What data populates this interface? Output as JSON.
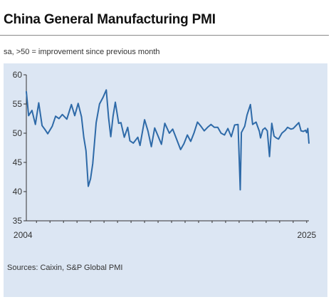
{
  "title": "China General Manufacturing PMI",
  "subtitle": "sa, >50 = improvement since previous month",
  "source": "Sources: Caixin, S&P Global PMI",
  "colors": {
    "line": "#2e6aa8",
    "panel": "#dce6f3",
    "grid": "#ffffff",
    "axis": "#333333"
  },
  "chart_data": {
    "type": "line",
    "title": "China General Manufacturing PMI",
    "subtitle": "sa, >50 = improvement since previous month",
    "xlabel": "",
    "ylabel": "",
    "x_tick_labels": [
      "2004",
      "2025"
    ],
    "x_range": [
      "2004-04",
      "2025-03"
    ],
    "ylim": [
      35,
      60
    ],
    "y_ticks": [
      35,
      40,
      45,
      50,
      55,
      60
    ],
    "grid": false,
    "legend": "none",
    "series": [
      {
        "points": [
          [
            "2004-04",
            57.1
          ],
          [
            "2004-06",
            53.0
          ],
          [
            "2004-09",
            53.9
          ],
          [
            "2004-12",
            51.5
          ],
          [
            "2005-03",
            55.2
          ],
          [
            "2005-06",
            51.3
          ],
          [
            "2005-09",
            50.5
          ],
          [
            "2005-11",
            49.9
          ],
          [
            "2006-03",
            51.2
          ],
          [
            "2006-06",
            52.9
          ],
          [
            "2006-09",
            52.5
          ],
          [
            "2006-12",
            53.2
          ],
          [
            "2007-04",
            52.4
          ],
          [
            "2007-08",
            54.9
          ],
          [
            "2007-11",
            53.0
          ],
          [
            "2008-02",
            55.1
          ],
          [
            "2008-05",
            52.8
          ],
          [
            "2008-07",
            49.3
          ],
          [
            "2008-09",
            47.0
          ],
          [
            "2008-11",
            40.9
          ],
          [
            "2009-01",
            42.2
          ],
          [
            "2009-03",
            44.8
          ],
          [
            "2009-06",
            51.8
          ],
          [
            "2009-09",
            55.0
          ],
          [
            "2009-12",
            56.1
          ],
          [
            "2010-03",
            57.4
          ],
          [
            "2010-05",
            52.7
          ],
          [
            "2010-07",
            49.4
          ],
          [
            "2010-09",
            52.9
          ],
          [
            "2010-11",
            55.3
          ],
          [
            "2011-02",
            51.7
          ],
          [
            "2011-04",
            51.8
          ],
          [
            "2011-07",
            49.3
          ],
          [
            "2011-10",
            51.0
          ],
          [
            "2011-12",
            48.7
          ],
          [
            "2012-03",
            48.3
          ],
          [
            "2012-07",
            49.3
          ],
          [
            "2012-09",
            47.9
          ],
          [
            "2013-01",
            52.3
          ],
          [
            "2013-04",
            50.4
          ],
          [
            "2013-07",
            47.7
          ],
          [
            "2013-10",
            50.9
          ],
          [
            "2014-01",
            49.5
          ],
          [
            "2014-04",
            48.1
          ],
          [
            "2014-07",
            51.7
          ],
          [
            "2014-11",
            50.0
          ],
          [
            "2015-02",
            50.7
          ],
          [
            "2015-05",
            49.2
          ],
          [
            "2015-09",
            47.2
          ],
          [
            "2015-12",
            48.2
          ],
          [
            "2016-03",
            49.7
          ],
          [
            "2016-06",
            48.6
          ],
          [
            "2016-09",
            50.1
          ],
          [
            "2016-12",
            51.9
          ],
          [
            "2017-03",
            51.2
          ],
          [
            "2017-06",
            50.4
          ],
          [
            "2017-09",
            51.0
          ],
          [
            "2017-12",
            51.5
          ],
          [
            "2018-03",
            51.0
          ],
          [
            "2018-06",
            51.0
          ],
          [
            "2018-09",
            50.0
          ],
          [
            "2018-12",
            49.7
          ],
          [
            "2019-03",
            50.8
          ],
          [
            "2019-06",
            49.4
          ],
          [
            "2019-09",
            51.4
          ],
          [
            "2019-12",
            51.5
          ],
          [
            "2020-02",
            40.3
          ],
          [
            "2020-03",
            50.1
          ],
          [
            "2020-06",
            51.2
          ],
          [
            "2020-08",
            53.1
          ],
          [
            "2020-11",
            54.9
          ],
          [
            "2021-01",
            51.5
          ],
          [
            "2021-04",
            51.9
          ],
          [
            "2021-07",
            50.3
          ],
          [
            "2021-08",
            49.2
          ],
          [
            "2021-10",
            50.6
          ],
          [
            "2021-12",
            50.9
          ],
          [
            "2022-02",
            50.4
          ],
          [
            "2022-04",
            46.0
          ],
          [
            "2022-06",
            51.7
          ],
          [
            "2022-08",
            49.5
          ],
          [
            "2022-10",
            49.2
          ],
          [
            "2022-12",
            49.0
          ],
          [
            "2023-03",
            50.0
          ],
          [
            "2023-06",
            50.5
          ],
          [
            "2023-08",
            51.0
          ],
          [
            "2023-11",
            50.7
          ],
          [
            "2024-01",
            50.8
          ],
          [
            "2024-04",
            51.4
          ],
          [
            "2024-06",
            51.8
          ],
          [
            "2024-08",
            50.4
          ],
          [
            "2024-10",
            50.3
          ],
          [
            "2024-12",
            50.5
          ],
          [
            "2025-01",
            50.1
          ],
          [
            "2025-02",
            50.8
          ],
          [
            "2025-03",
            48.3
          ]
        ]
      }
    ]
  }
}
